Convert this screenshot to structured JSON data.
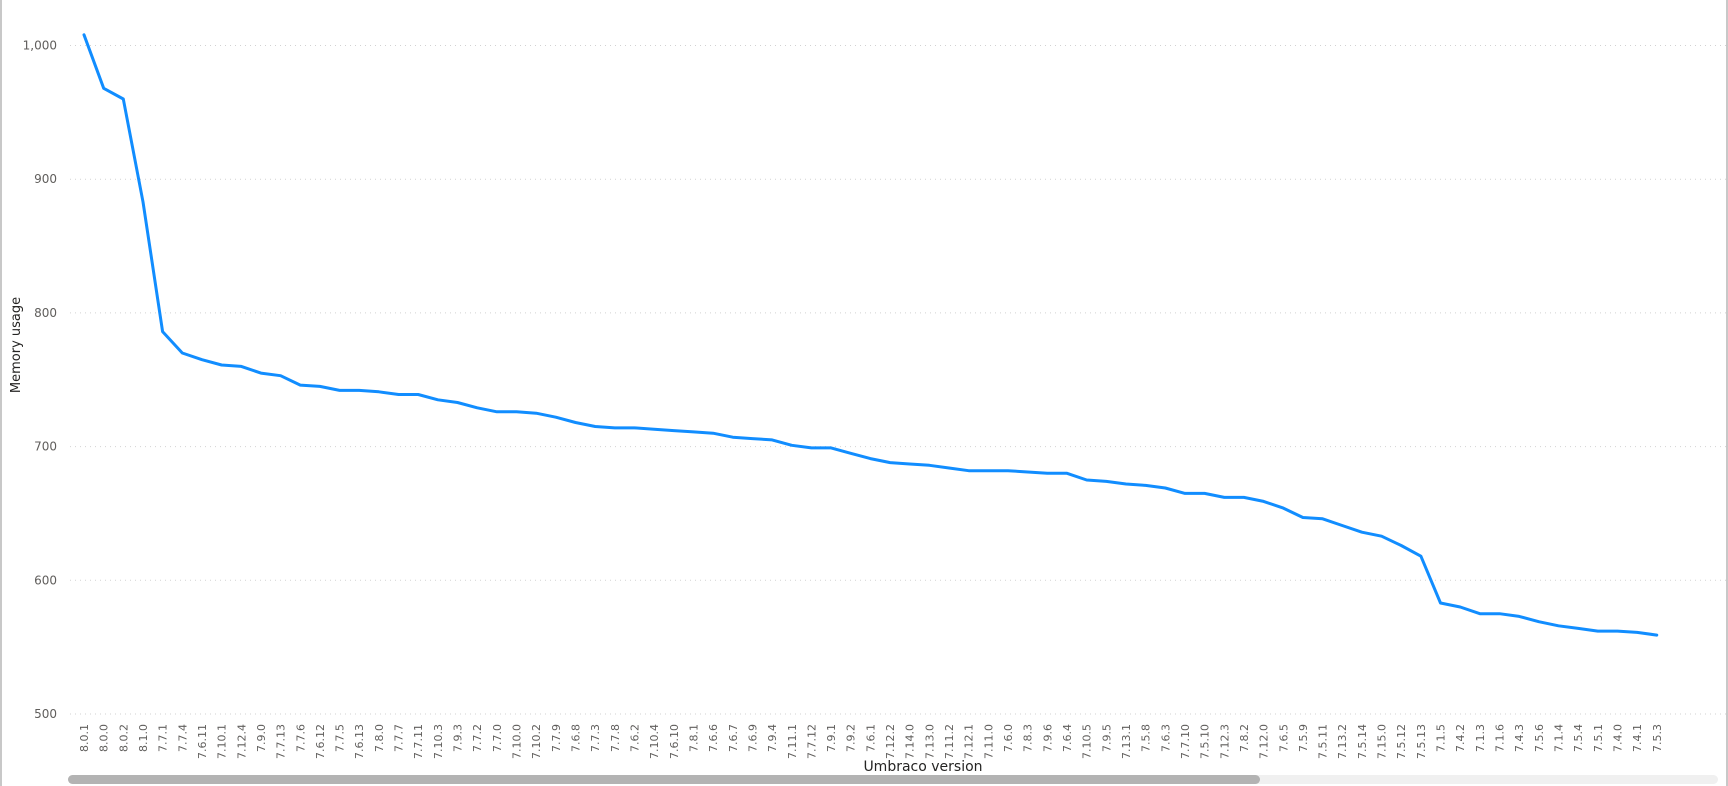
{
  "chart_data": {
    "type": "line",
    "xlabel": "Umbraco version",
    "ylabel": "Memory usage",
    "ylim": [
      500,
      1010
    ],
    "yticks": [
      500,
      600,
      700,
      800,
      900,
      1000
    ],
    "ytick_labels": [
      "500",
      "600",
      "700",
      "800",
      "900",
      "1,000"
    ],
    "grid": "horizontal dotted",
    "line_color": "#118DFF",
    "categories": [
      "8.0.1",
      "8.0.0",
      "8.0.2",
      "8.1.0",
      "7.7.1",
      "7.7.4",
      "7.6.11",
      "7.10.1",
      "7.12.4",
      "7.9.0",
      "7.7.13",
      "7.7.6",
      "7.6.12",
      "7.7.5",
      "7.6.13",
      "7.8.0",
      "7.7.7",
      "7.7.11",
      "7.10.3",
      "7.9.3",
      "7.7.2",
      "7.7.0",
      "7.10.0",
      "7.10.2",
      "7.7.9",
      "7.6.8",
      "7.7.3",
      "7.7.8",
      "7.6.2",
      "7.10.4",
      "7.6.10",
      "7.8.1",
      "7.6.6",
      "7.6.7",
      "7.6.9",
      "7.9.4",
      "7.11.1",
      "7.7.12",
      "7.9.1",
      "7.9.2",
      "7.6.1",
      "7.12.2",
      "7.14.0",
      "7.13.0",
      "7.11.2",
      "7.12.1",
      "7.11.0",
      "7.6.0",
      "7.8.3",
      "7.9.6",
      "7.6.4",
      "7.10.5",
      "7.9.5",
      "7.13.1",
      "7.5.8",
      "7.6.3",
      "7.7.10",
      "7.5.10",
      "7.12.3",
      "7.8.2",
      "7.12.0",
      "7.6.5",
      "7.5.9",
      "7.5.11",
      "7.13.2",
      "7.5.14",
      "7.15.0",
      "7.5.12",
      "7.5.13",
      "7.1.5",
      "7.4.2",
      "7.1.3",
      "7.1.6",
      "7.4.3",
      "7.5.6",
      "7.1.4",
      "7.5.4",
      "7.5.1",
      "7.4.0",
      "7.4.1",
      "7.5.3"
    ],
    "series": [
      {
        "values": [
          1008,
          968,
          960,
          883,
          786,
          770,
          765,
          761,
          760,
          755,
          753,
          746,
          745,
          742,
          742,
          741,
          739,
          739,
          735,
          733,
          729,
          726,
          726,
          725,
          722,
          718,
          715,
          714,
          714,
          713,
          712,
          711,
          710,
          707,
          706,
          705,
          701,
          699,
          699,
          695,
          691,
          688,
          687,
          686,
          684,
          682,
          682,
          682,
          681,
          680,
          680,
          675,
          674,
          672,
          671,
          669,
          665,
          665,
          662,
          662,
          659,
          654,
          647,
          646,
          641,
          636,
          633,
          626,
          618,
          583,
          580,
          575,
          575,
          573,
          569,
          566,
          564,
          562,
          562,
          561,
          559
        ]
      }
    ]
  }
}
